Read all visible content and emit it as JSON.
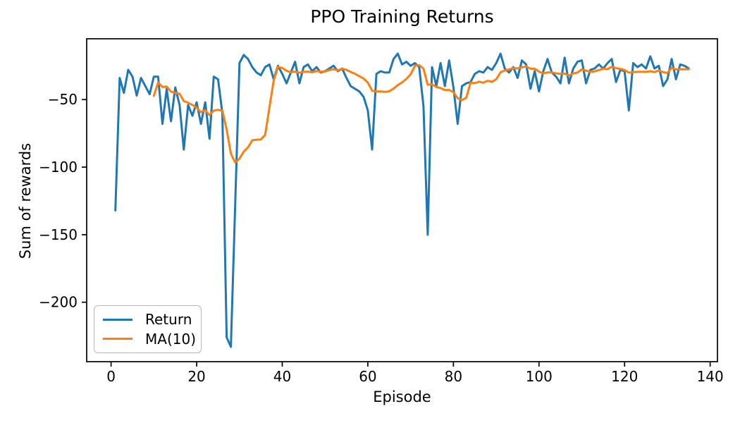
{
  "chart_data": {
    "type": "line",
    "title": "PPO Training Returns",
    "xlabel": "Episode",
    "ylabel": "Sum of rewards",
    "grid": false,
    "legend_position": "lower left",
    "background_color": "#ffffff",
    "axis_color": "#000000",
    "xlim": [
      -5.7,
      141.7
    ],
    "ylim": [
      -244,
      -5
    ],
    "x_ticks": [
      0,
      20,
      40,
      60,
      80,
      100,
      120,
      140
    ],
    "x_tick_labels": [
      "0",
      "20",
      "40",
      "60",
      "80",
      "100",
      "120",
      "140"
    ],
    "y_ticks": [
      -50,
      -100,
      -150,
      -200
    ],
    "y_tick_labels": [
      "−50",
      "−100",
      "−150",
      "−200"
    ],
    "series": [
      {
        "name": "Return",
        "color": "#1f77b4",
        "x_start": 1,
        "x_step": 1,
        "values": [
          -132,
          -34,
          -45,
          -28,
          -33,
          -47,
          -34,
          -40,
          -46,
          -33,
          -33,
          -68,
          -42,
          -66,
          -41,
          -54,
          -87,
          -54,
          -62,
          -52,
          -68,
          -52,
          -79,
          -33,
          -35,
          -60,
          -226,
          -233,
          -128,
          -23,
          -17,
          -20,
          -26,
          -30,
          -32,
          -26,
          -24,
          -35,
          -25,
          -31,
          -38,
          -30,
          -22,
          -38,
          -26,
          -24,
          -29,
          -26,
          -30,
          -29,
          -27,
          -25,
          -29,
          -27,
          -34,
          -40,
          -42,
          -44,
          -48,
          -58,
          -87,
          -31,
          -29,
          -30,
          -30,
          -20,
          -16,
          -24,
          -22,
          -25,
          -23,
          -26,
          -55,
          -150,
          -26,
          -40,
          -23,
          -40,
          -21,
          -41,
          -68,
          -40,
          -38,
          -37,
          -31,
          -29,
          -30,
          -26,
          -28,
          -23,
          -16,
          -27,
          -30,
          -26,
          -34,
          -21,
          -24,
          -42,
          -29,
          -44,
          -29,
          -20,
          -30,
          -33,
          -38,
          -19,
          -38,
          -27,
          -22,
          -21,
          -38,
          -28,
          -27,
          -24,
          -27,
          -23,
          -20,
          -37,
          -28,
          -29,
          -58,
          -23,
          -26,
          -24,
          -27,
          -18,
          -27,
          -25,
          -40,
          -35,
          -20,
          -35,
          -24,
          -25,
          -27
        ]
      },
      {
        "name": "MA(10)",
        "color": "#ff7f0e",
        "x_start": 10,
        "x_step": 1,
        "values": [
          -47.2,
          -37.3,
          -40.7,
          -40.4,
          -44.2,
          -45.0,
          -45.7,
          -51.0,
          -52.4,
          -54.0,
          -55.9,
          -59.4,
          -57.8,
          -61.5,
          -58.2,
          -57.6,
          -58.2,
          -72.1,
          -90.0,
          -96.6,
          -93.7,
          -88.6,
          -85.4,
          -80.1,
          -79.8,
          -79.5,
          -76.1,
          -55.9,
          -36.1,
          -25.8,
          -26.6,
          -28.7,
          -29.7,
          -29.3,
          -30.1,
          -29.5,
          -29.3,
          -29.8,
          -28.9,
          -29.4,
          -29.2,
          -28.1,
          -27.6,
          -28.3,
          -27.2,
          -28.0,
          -29.6,
          -30.9,
          -32.7,
          -34.5,
          -37.4,
          -43.4,
          -44.0,
          -44.0,
          -44.3,
          -43.9,
          -41.9,
          -39.3,
          -37.3,
          -34.7,
          -31.4,
          -25.0,
          -24.5,
          -27.1,
          -39.1,
          -38.7,
          -40.7,
          -41.4,
          -43.0,
          -42.9,
          -44.5,
          -49.0,
          -50.4,
          -48.7,
          -37.4,
          -37.9,
          -36.8,
          -37.5,
          -36.1,
          -36.8,
          -35.0,
          -29.8,
          -28.5,
          -27.7,
          -26.6,
          -26.9,
          -26.1,
          -25.5,
          -27.1,
          -27.2,
          -29.3,
          -30.6,
          -29.9,
          -29.9,
          -30.6,
          -31.0,
          -30.8,
          -32.2,
          -30.7,
          -30.0,
          -27.7,
          -28.6,
          -29.4,
          -29.1,
          -28.2,
          -27.1,
          -27.5,
          -25.7,
          -26.7,
          -27.3,
          -28.1,
          -30.1,
          -29.6,
          -29.5,
          -29.5,
          -29.5,
          -29.0,
          -29.7,
          -28.5,
          -29.7,
          -30.3,
          -26.5,
          -27.7,
          -27.5,
          -27.6,
          -27.6
        ]
      }
    ]
  }
}
